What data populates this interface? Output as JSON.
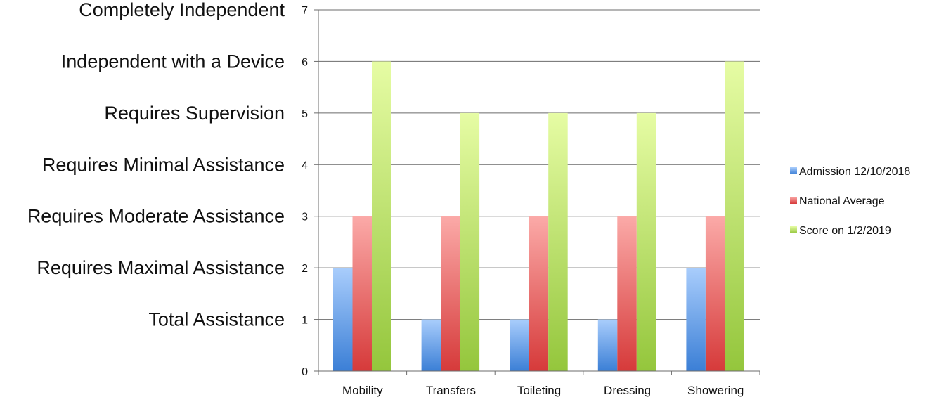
{
  "chart_data": {
    "type": "bar",
    "categories": [
      "Mobility",
      "Transfers",
      "Toileting",
      "Dressing",
      "Showering"
    ],
    "series": [
      {
        "name": "Admission 12/10/2018",
        "values": [
          2,
          1,
          1,
          1,
          2
        ],
        "color_light": "#a9cdfc",
        "color_dark": "#3b7fd6"
      },
      {
        "name": "National Average",
        "values": [
          3,
          3,
          3,
          3,
          3
        ],
        "color_light": "#fbaaa8",
        "color_dark": "#d63a3a"
      },
      {
        "name": "Score on 1/2/2019",
        "values": [
          6,
          5,
          5,
          5,
          6
        ],
        "color_light": "#e6fca4",
        "color_dark": "#94c63c"
      }
    ],
    "ylim": [
      0,
      7
    ],
    "yticks": [
      0,
      1,
      2,
      3,
      4,
      5,
      6,
      7
    ],
    "level_labels": [
      {
        "value": 1,
        "text": "Total Assistance"
      },
      {
        "value": 2,
        "text": "Requires Maximal Assistance"
      },
      {
        "value": 3,
        "text": "Requires Moderate Assistance"
      },
      {
        "value": 4,
        "text": "Requires Minimal Assistance"
      },
      {
        "value": 5,
        "text": "Requires Supervision"
      },
      {
        "value": 6,
        "text": "Independent with a Device"
      },
      {
        "value": 7,
        "text": "Completely Independent"
      }
    ],
    "grid": true,
    "legend_position": "right",
    "gridline_color": "#6b6b6b"
  }
}
